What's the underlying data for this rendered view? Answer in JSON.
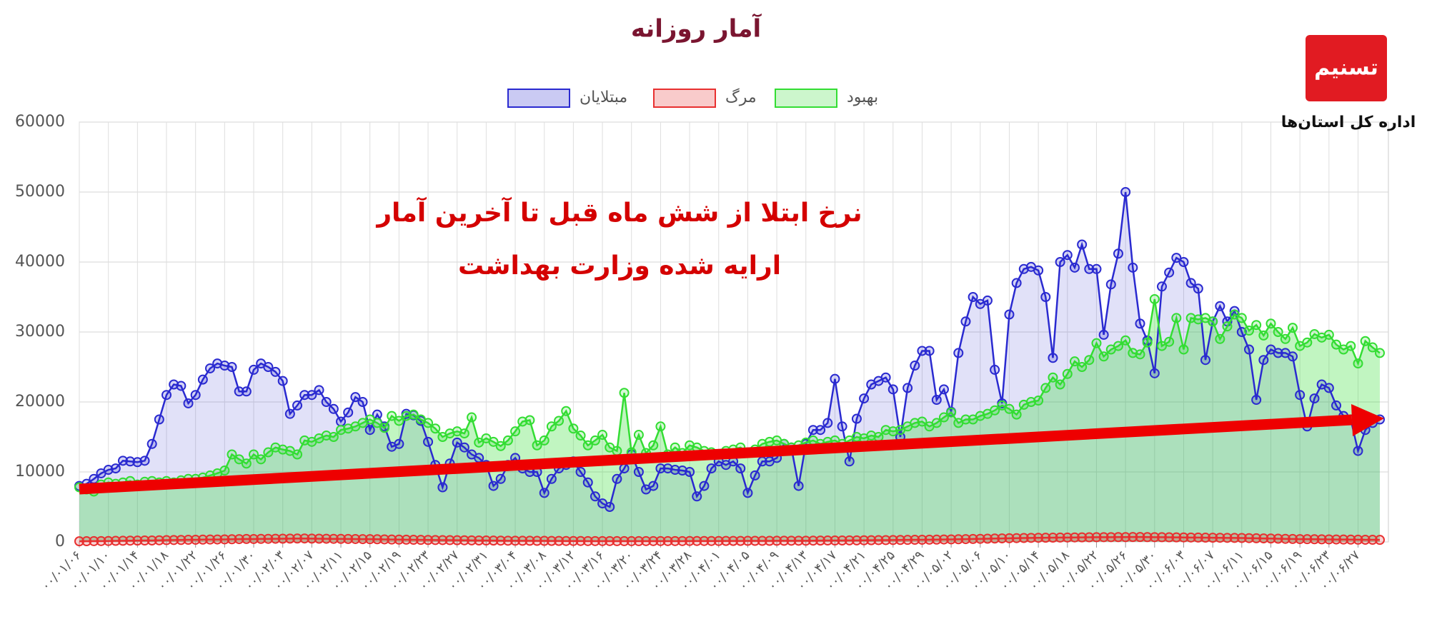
{
  "chart_data": {
    "type": "line",
    "title": "آمار روزانه",
    "annotations": [
      "نرخ ابتلا از شش ماه قبل تا آخرین آمار",
      "ارایه شده وزارت بهداشت"
    ],
    "categories": [
      "۰۰/۰۱/۰۶",
      null,
      null,
      null,
      "۰۰/۰۱/۱۰",
      null,
      null,
      null,
      "۰۰/۰۱/۱۴",
      null,
      null,
      null,
      "۰۰/۰۱/۱۸",
      null,
      null,
      null,
      "۰۰/۰۱/۲۲",
      null,
      null,
      null,
      "۰۰/۰۱/۲۶",
      null,
      null,
      null,
      "۰۰/۰۱/۳۰",
      null,
      null,
      null,
      "۰۰/۰۲/۰۳",
      null,
      null,
      null,
      "۰۰/۰۲/۰۷",
      null,
      null,
      null,
      "۰۰/۰۲/۱۱",
      null,
      null,
      null,
      "۰۰/۰۲/۱۵",
      null,
      null,
      null,
      "۰۰/۰۲/۱۹",
      null,
      null,
      null,
      "۰۰/۰۲/۲۳",
      null,
      null,
      null,
      "۰۰/۰۲/۲۷",
      null,
      null,
      null,
      "۰۰/۰۲/۳۱",
      null,
      null,
      null,
      "۰۰/۰۳/۰۴",
      null,
      null,
      null,
      "۰۰/۰۳/۰۸",
      null,
      null,
      null,
      "۰۰/۰۳/۱۲",
      null,
      null,
      null,
      "۰۰/۰۳/۱۶",
      null,
      null,
      null,
      "۰۰/۰۳/۲۰",
      null,
      null,
      null,
      "۰۰/۰۳/۲۴",
      null,
      null,
      null,
      "۰۰/۰۳/۲۸",
      null,
      null,
      null,
      "۰۰/۰۴/۰۱",
      null,
      null,
      null,
      "۰۰/۰۴/۰۵",
      null,
      null,
      null,
      "۰۰/۰۴/۰۹",
      null,
      null,
      null,
      "۰۰/۰۴/۱۳",
      null,
      null,
      null,
      "۰۰/۰۴/۱۷",
      null,
      null,
      null,
      "۰۰/۰۴/۲۱",
      null,
      null,
      null,
      "۰۰/۰۴/۲۵",
      null,
      null,
      null,
      "۰۰/۰۴/۲۹",
      null,
      null,
      null,
      "۰۰/۰۵/۰۲",
      null,
      null,
      null,
      "۰۰/۰۵/۰۶",
      null,
      null,
      null,
      "۰۰/۰۵/۱۰",
      null,
      null,
      null,
      "۰۰/۰۵/۱۴",
      null,
      null,
      null,
      "۰۰/۰۵/۱۸",
      null,
      null,
      null,
      "۰۰/۰۵/۲۲",
      null,
      null,
      null,
      "۰۰/۰۵/۲۶",
      null,
      null,
      null,
      "۰۰/۰۵/۳۰",
      null,
      null,
      null,
      "۰۰/۰۶/۰۳",
      null,
      null,
      null,
      "۰۰/۰۶/۰۷",
      null,
      null,
      null,
      "۰۰/۰۶/۱۱",
      null,
      null,
      null,
      "۰۰/۰۶/۱۵",
      null,
      null,
      null,
      "۰۰/۰۶/۱۹",
      null,
      null,
      null,
      "۰۰/۰۶/۲۳",
      null,
      null,
      null,
      "۰۰/۰۶/۲۷",
      null,
      null,
      null
    ],
    "series": [
      {
        "name": "مبتلایان",
        "color": "#2a2ad0",
        "values": [
          8000,
          8300,
          9000,
          9800,
          10300,
          10500,
          11600,
          11500,
          11400,
          11600,
          14000,
          17500,
          21000,
          22500,
          22300,
          19800,
          21000,
          23200,
          24800,
          25500,
          25200,
          25000,
          21500,
          21500,
          24600,
          25500,
          25000,
          24300,
          23000,
          18300,
          19500,
          21000,
          21000,
          21700,
          20000,
          19000,
          17200,
          18500,
          20700,
          20000,
          16000,
          18200,
          16500,
          13600,
          14000,
          18300,
          18100,
          17300,
          14300,
          11000,
          7800,
          11200,
          14200,
          13500,
          12500,
          12000,
          11000,
          8000,
          9000,
          11000,
          12000,
          10500,
          10000,
          10000,
          7000,
          9000,
          10500,
          11000,
          11500,
          10000,
          8500,
          6500,
          5500,
          5000,
          9000,
          10500,
          12500,
          10000,
          7500,
          8000,
          10500,
          10500,
          10300,
          10200,
          10000,
          6500,
          8000,
          10500,
          11500,
          11000,
          11500,
          10500,
          7000,
          9500,
          11500,
          11500,
          12000,
          14000,
          13500,
          8000,
          14000,
          16000,
          16000,
          17000,
          23300,
          16500,
          11500,
          17600,
          20500,
          22500,
          23000,
          23500,
          21800,
          15000,
          22000,
          25200,
          27300,
          27300,
          20300,
          21800,
          18600,
          27000,
          31500,
          35000,
          34000,
          34500,
          24600,
          19800,
          32500,
          37000,
          39000,
          39300,
          38800,
          35000,
          26300,
          40000,
          41000,
          39200,
          42500,
          39000,
          39000,
          29600,
          36800,
          41200,
          50000,
          39200,
          31200,
          28800,
          24100,
          36500,
          38500,
          40600,
          40000,
          37000,
          36200,
          26000,
          31500,
          33700,
          31500,
          33000,
          30000,
          27500,
          20300,
          26000,
          27500,
          27000,
          27000,
          26500,
          21000,
          16500,
          20500,
          22500,
          22000,
          19500,
          18000,
          17500,
          13000,
          16000,
          17000,
          17500
        ]
      },
      {
        "name": "مرگ",
        "color": "#e83030",
        "values": [
          90,
          100,
          110,
          120,
          130,
          150,
          160,
          180,
          190,
          200,
          210,
          230,
          250,
          270,
          280,
          300,
          310,
          330,
          340,
          350,
          360,
          380,
          400,
          420,
          410,
          430,
          440,
          450,
          460,
          470,
          480,
          490,
          470,
          460,
          450,
          440,
          430,
          420,
          410,
          400,
          390,
          380,
          360,
          340,
          330,
          320,
          300,
          290,
          280,
          270,
          260,
          250,
          240,
          230,
          220,
          210,
          200,
          190,
          180,
          170,
          170,
          160,
          160,
          150,
          150,
          140,
          140,
          130,
          130,
          130,
          120,
          120,
          120,
          120,
          110,
          110,
          110,
          110,
          120,
          120,
          120,
          120,
          120,
          120,
          130,
          130,
          130,
          130,
          130,
          140,
          140,
          140,
          150,
          150,
          150,
          150,
          160,
          160,
          170,
          170,
          170,
          180,
          190,
          200,
          200,
          210,
          220,
          220,
          230,
          240,
          250,
          260,
          270,
          280,
          290,
          300,
          310,
          320,
          330,
          350,
          360,
          380,
          400,
          420,
          440,
          460,
          480,
          500,
          520,
          540,
          560,
          580,
          590,
          600,
          610,
          620,
          630,
          640,
          650,
          660,
          670,
          680,
          680,
          690,
          690,
          700,
          700,
          690,
          680,
          670,
          660,
          650,
          640,
          630,
          620,
          610,
          600,
          590,
          580,
          570,
          560,
          540,
          520,
          500,
          480,
          460,
          440,
          420,
          400,
          390,
          380,
          370,
          360,
          350,
          340,
          330,
          320,
          310,
          300,
          290
        ]
      },
      {
        "name": "بهبود",
        "color": "#33dd33",
        "values": [
          7800,
          7500,
          7200,
          8200,
          8500,
          8300,
          8500,
          8700,
          8200,
          8600,
          8700,
          8500,
          8700,
          8500,
          8800,
          9000,
          9000,
          9200,
          9500,
          9800,
          10200,
          12500,
          11800,
          11200,
          12500,
          11800,
          12800,
          13500,
          13200,
          13000,
          12500,
          14500,
          14300,
          14800,
          15200,
          15000,
          16000,
          16200,
          16500,
          17000,
          17500,
          17000,
          16300,
          18000,
          17300,
          18000,
          18200,
          17500,
          17000,
          16200,
          15000,
          15500,
          15800,
          15500,
          17800,
          14200,
          14800,
          14300,
          13700,
          14500,
          15800,
          17200,
          17400,
          13800,
          14500,
          16500,
          17300,
          18700,
          16200,
          15200,
          13800,
          14500,
          15300,
          13500,
          13000,
          21300,
          12800,
          15300,
          12700,
          13800,
          16500,
          12500,
          13500,
          12700,
          13800,
          13500,
          13000,
          12800,
          12500,
          13000,
          13200,
          13500,
          12800,
          13200,
          14000,
          14300,
          14500,
          14000,
          13500,
          13800,
          14200,
          14500,
          14000,
          14300,
          14500,
          14000,
          14500,
          15000,
          14800,
          15200,
          15000,
          16000,
          15800,
          16000,
          16500,
          17000,
          17200,
          16500,
          17000,
          17800,
          18500,
          17000,
          17500,
          17500,
          18000,
          18300,
          18800,
          19500,
          19000,
          18200,
          19600,
          20000,
          20200,
          22000,
          23500,
          22500,
          24000,
          25800,
          25000,
          26000,
          28400,
          26500,
          27500,
          28000,
          28800,
          27000,
          26800,
          28500,
          34700,
          28000,
          28600,
          32000,
          27500,
          32000,
          31800,
          32000,
          31500,
          29000,
          30800,
          32500,
          32000,
          30200,
          31000,
          29500,
          31200,
          30000,
          29000,
          30600,
          28000,
          28500,
          29700,
          29200,
          29600,
          28200,
          27500,
          28000,
          25500,
          28700,
          27800,
          27000
        ]
      }
    ],
    "ylim": [
      0,
      60000
    ],
    "yticks": [
      0,
      10000,
      20000,
      30000,
      40000,
      50000,
      60000
    ],
    "grid": true
  },
  "logo": {
    "mark": "تسنیم",
    "caption": "اداره کل استان‌ها"
  }
}
